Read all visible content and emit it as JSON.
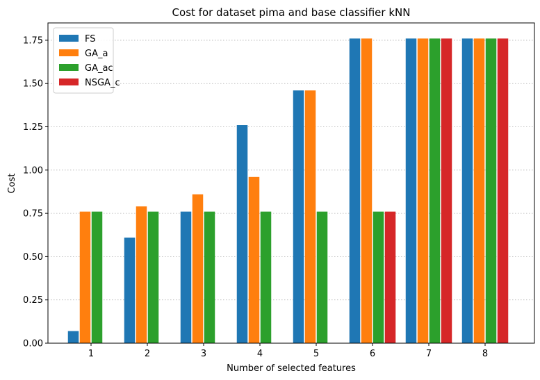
{
  "chart_data": {
    "type": "bar",
    "title": "Cost for dataset pima and base classifier kNN",
    "xlabel": "Number of selected features",
    "ylabel": "Cost",
    "categories": [
      "1",
      "2",
      "3",
      "4",
      "5",
      "6",
      "7",
      "8"
    ],
    "ylim": [
      0,
      1.85
    ],
    "yticks": [
      "0.00",
      "0.25",
      "0.50",
      "0.75",
      "1.00",
      "1.25",
      "1.50",
      "1.75"
    ],
    "grid": "y-dotted",
    "legend_position": "top-left",
    "series": [
      {
        "name": "FS",
        "color": "#1f77b4",
        "values": [
          0.07,
          0.61,
          0.76,
          1.26,
          1.46,
          1.76,
          1.76,
          1.76
        ]
      },
      {
        "name": "GA_a",
        "color": "#ff7f0e",
        "values": [
          0.76,
          0.79,
          0.86,
          0.96,
          1.46,
          1.76,
          1.76,
          1.76
        ]
      },
      {
        "name": "GA_ac",
        "color": "#2ca02c",
        "values": [
          0.76,
          0.76,
          0.76,
          0.76,
          0.76,
          0.76,
          1.76,
          1.76
        ]
      },
      {
        "name": "NSGA_c",
        "color": "#d62728",
        "values": [
          null,
          null,
          null,
          null,
          null,
          0.76,
          1.76,
          1.76
        ]
      }
    ]
  }
}
